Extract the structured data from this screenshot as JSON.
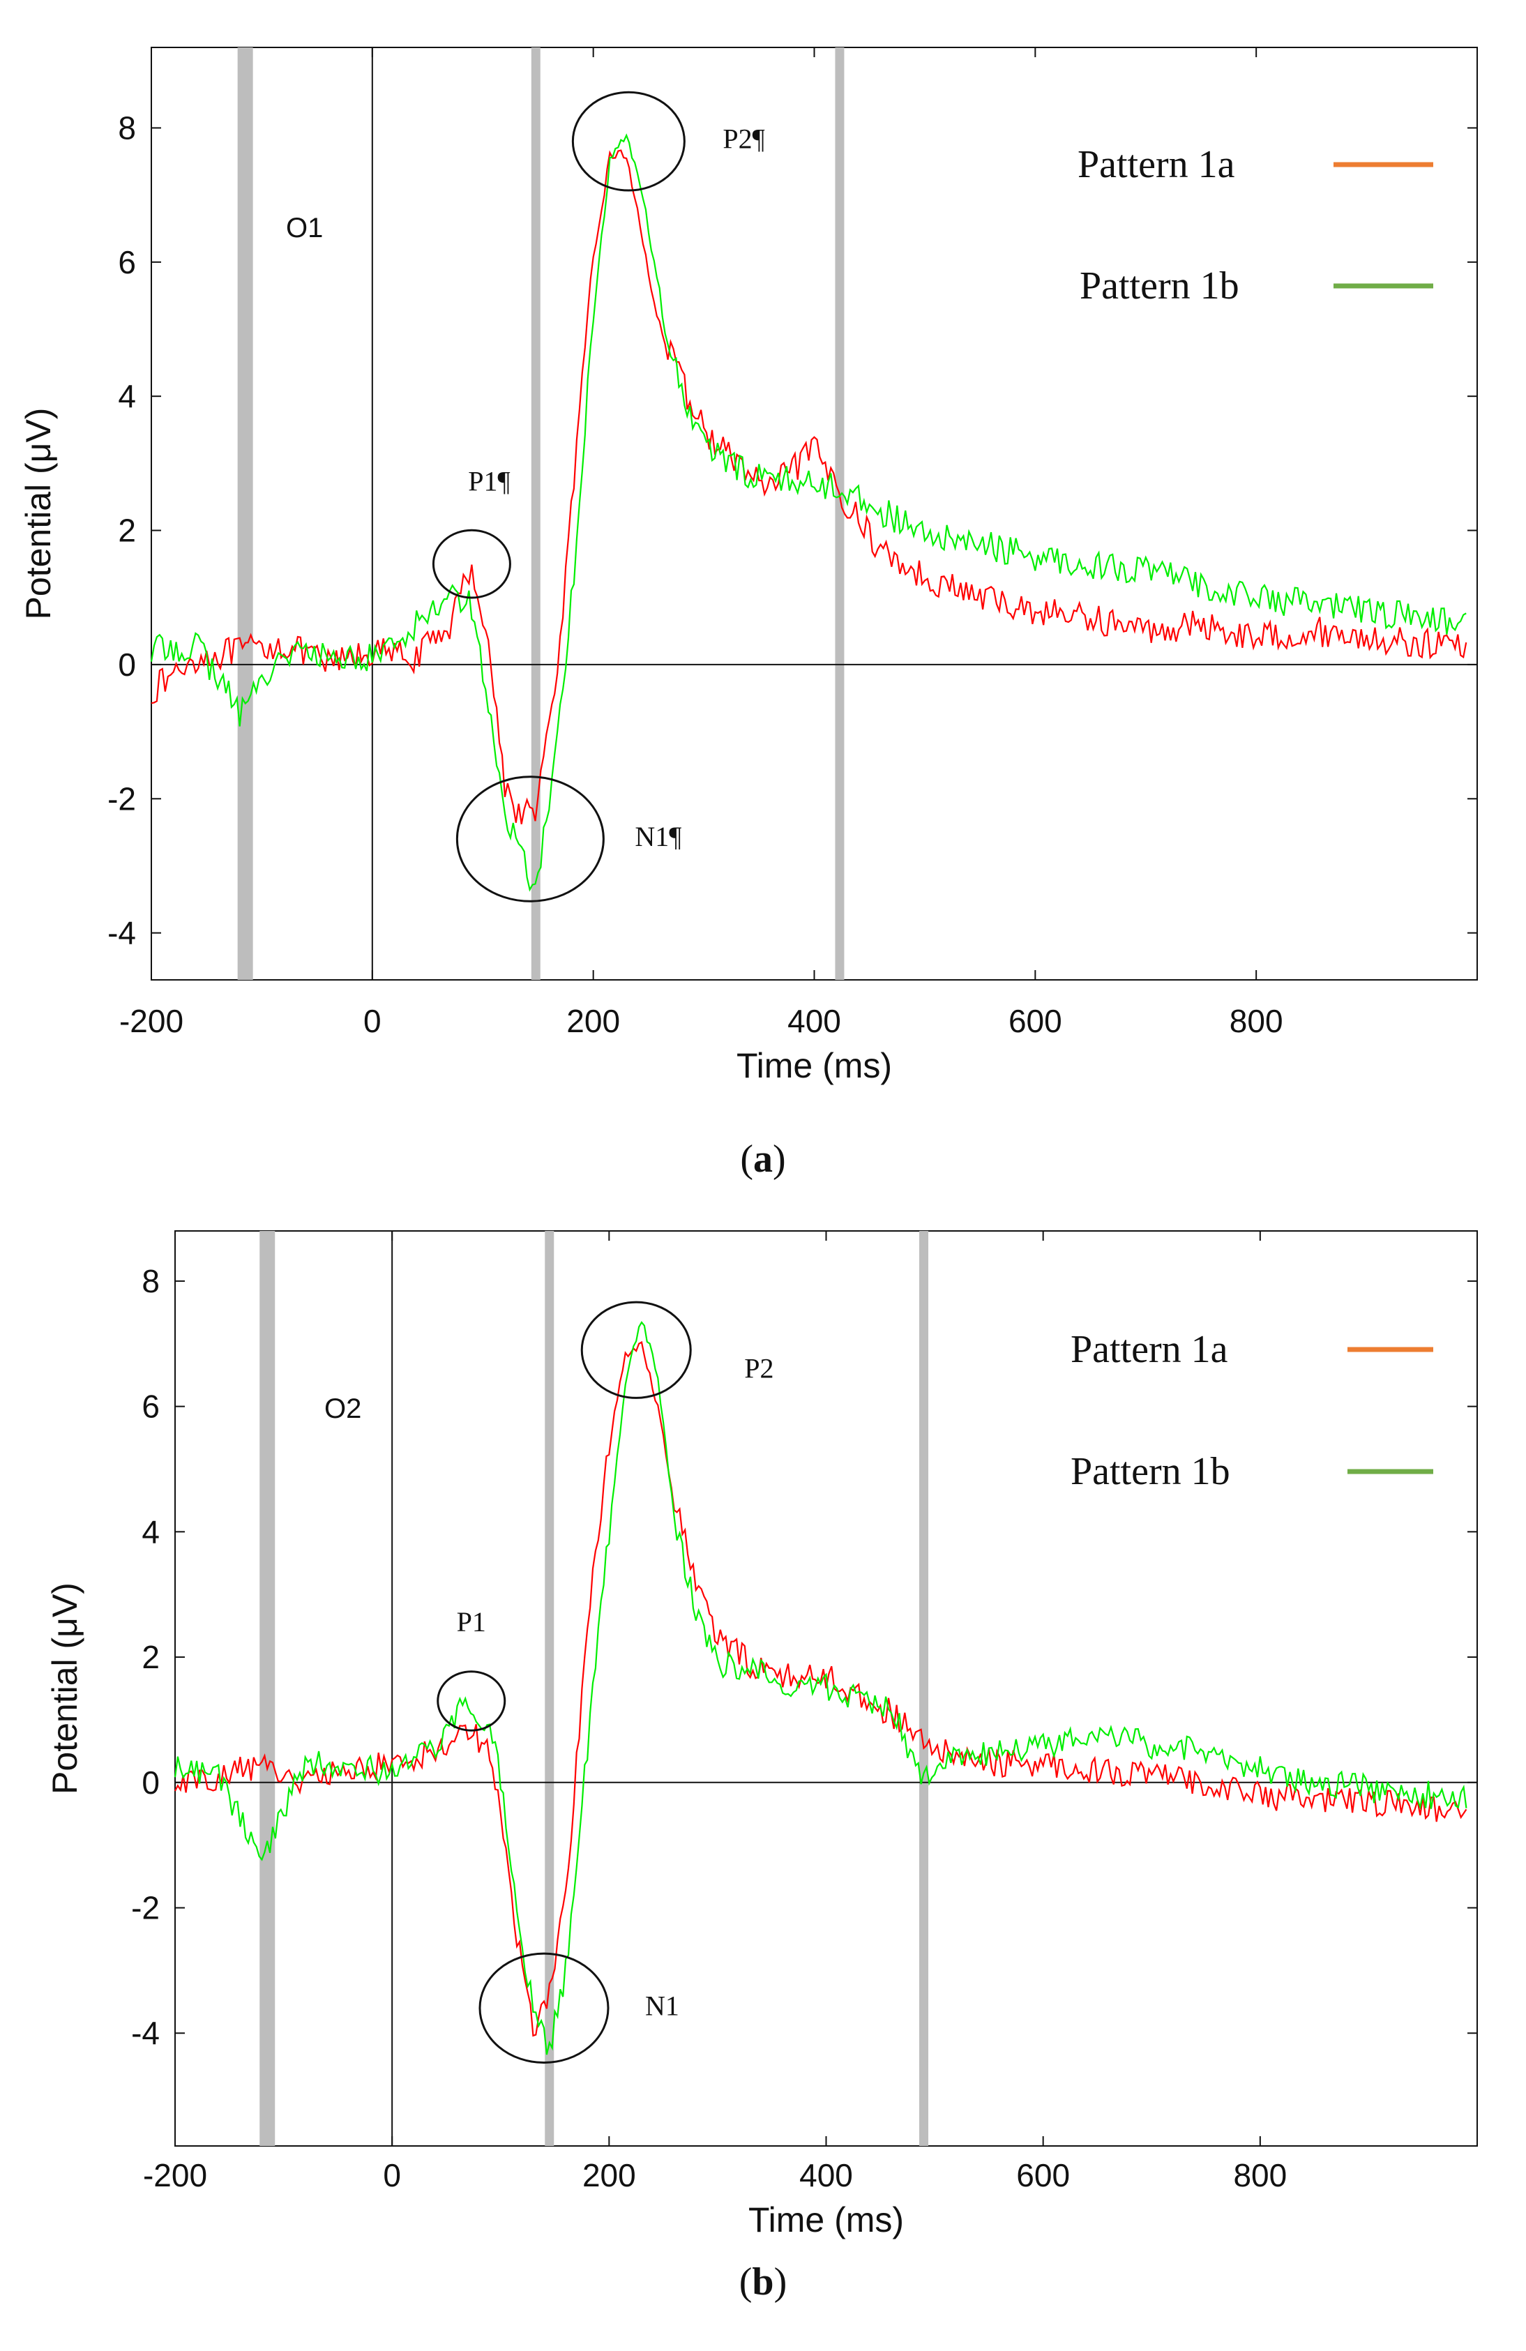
{
  "chart_data": [
    {
      "type": "line",
      "panel_caption": "a",
      "channel_label": "O1",
      "xlabel": "Time (ms)",
      "ylabel": "Potential (μV)",
      "xlim": [
        -200,
        1000
      ],
      "ylim": [
        -4.7,
        9.2
      ],
      "xticks": [
        "-200",
        "0",
        "200",
        "400",
        "600",
        "800"
      ],
      "xtick_values": [
        -200,
        0,
        200,
        400,
        600,
        800
      ],
      "yticks": [
        "8",
        "6",
        "4",
        "2",
        "0",
        "-2",
        "-4"
      ],
      "ytick_values": [
        8,
        6,
        4,
        2,
        0,
        -2,
        -4
      ],
      "gray_markers_ms": [
        -115,
        148,
        423
      ],
      "legend": [
        {
          "label": "Pattern 1a",
          "color": "#ED7D31"
        },
        {
          "label": "Pattern 1b",
          "color": "#70AD47"
        }
      ],
      "series": [
        {
          "name": "Pattern 1a",
          "color": "#ff0000",
          "x": [
            -200,
            -160,
            -120,
            -80,
            -40,
            0,
            40,
            70,
            90,
            105,
            120,
            135,
            148,
            165,
            185,
            200,
            215,
            230,
            245,
            260,
            280,
            300,
            330,
            360,
            400,
            430,
            460,
            500,
            550,
            600,
            650,
            700,
            750,
            800,
            850,
            900,
            950,
            990
          ],
          "y": [
            -0.4,
            0.1,
            0.2,
            0.3,
            0.0,
            0.2,
            0.1,
            0.6,
            1.5,
            0.3,
            -1.8,
            -2.3,
            -2.1,
            -0.5,
            3.2,
            6.0,
            7.6,
            7.6,
            6.3,
            5.0,
            4.2,
            3.5,
            3.0,
            2.6,
            3.2,
            2.4,
            1.7,
            1.3,
            1.0,
            0.8,
            0.7,
            0.5,
            0.6,
            0.4,
            0.5,
            0.4,
            0.3,
            0.3
          ]
        },
        {
          "name": "Pattern 1b",
          "color": "#00ee00",
          "x": [
            -200,
            -160,
            -120,
            -80,
            -40,
            0,
            40,
            70,
            90,
            105,
            120,
            135,
            148,
            165,
            185,
            200,
            215,
            230,
            245,
            260,
            280,
            300,
            330,
            360,
            400,
            430,
            460,
            500,
            550,
            600,
            650,
            700,
            750,
            800,
            850,
            900,
            950,
            990
          ],
          "y": [
            0.2,
            0.3,
            -0.7,
            0.2,
            0.1,
            0.1,
            0.6,
            1.1,
            0.9,
            -0.6,
            -2.3,
            -2.8,
            -3.4,
            -1.5,
            1.8,
            5.2,
            7.5,
            7.9,
            7.0,
            5.5,
            4.0,
            3.3,
            2.9,
            2.8,
            2.7,
            2.6,
            2.3,
            1.9,
            1.8,
            1.6,
            1.5,
            1.4,
            1.2,
            1.0,
            0.9,
            0.8,
            0.7,
            0.6
          ]
        }
      ],
      "annotations": [
        {
          "label": "P1¶",
          "x": 90,
          "y": 1.5
        },
        {
          "label": "N1¶",
          "x": 143,
          "y": -2.6
        },
        {
          "label": "P2¶",
          "x": 232,
          "y": 7.8
        }
      ]
    },
    {
      "type": "line",
      "panel_caption": "b",
      "channel_label": "O2",
      "xlabel": "Time (ms)",
      "ylabel": "Potential (μV)",
      "xlim": [
        -200,
        1000
      ],
      "ylim": [
        -5.8,
        8.8
      ],
      "xticks": [
        "-200",
        "0",
        "200",
        "400",
        "600",
        "800"
      ],
      "xtick_values": [
        -200,
        0,
        200,
        400,
        600,
        800
      ],
      "yticks": [
        "8",
        "6",
        "4",
        "2",
        "0",
        "-2",
        "-4"
      ],
      "yticks_values_note": "",
      "ytick_values": [
        8,
        6,
        4,
        2,
        0,
        -2,
        -4
      ],
      "gray_markers_ms": [
        -115,
        145,
        490
      ],
      "legend": [
        {
          "label": "Pattern 1a",
          "color": "#ED7D31"
        },
        {
          "label": "Pattern 1b",
          "color": "#70AD47"
        }
      ],
      "series": [
        {
          "name": "Pattern 1a",
          "color": "#ff0000",
          "x": [
            -200,
            -160,
            -120,
            -80,
            -40,
            0,
            40,
            70,
            90,
            100,
            115,
            130,
            145,
            160,
            180,
            200,
            215,
            230,
            245,
            260,
            280,
            300,
            330,
            360,
            400,
            430,
            460,
            490,
            520,
            560,
            600,
            650,
            700,
            750,
            800,
            850,
            900,
            950,
            990
          ],
          "y": [
            0.0,
            0.1,
            0.3,
            0.0,
            0.2,
            0.3,
            0.5,
            0.9,
            0.5,
            -0.5,
            -2.5,
            -3.9,
            -3.4,
            -1.8,
            2.5,
            5.4,
            6.8,
            7.0,
            6.0,
            4.5,
            3.2,
            2.3,
            1.9,
            1.7,
            1.7,
            1.4,
            1.1,
            0.6,
            0.4,
            0.3,
            0.3,
            0.2,
            0.1,
            0.0,
            -0.2,
            -0.3,
            -0.3,
            -0.4,
            -0.5
          ]
        },
        {
          "name": "Pattern 1b",
          "color": "#00ee00",
          "x": [
            -200,
            -160,
            -120,
            -80,
            -40,
            0,
            40,
            70,
            90,
            100,
            115,
            130,
            145,
            160,
            180,
            200,
            215,
            230,
            245,
            260,
            280,
            300,
            330,
            360,
            400,
            430,
            460,
            490,
            520,
            560,
            600,
            650,
            700,
            750,
            800,
            850,
            900,
            950,
            990
          ],
          "y": [
            0.2,
            0.1,
            -1.3,
            0.3,
            0.3,
            0.1,
            0.6,
            1.3,
            0.9,
            0.0,
            -2.0,
            -3.6,
            -4.3,
            -3.0,
            0.5,
            4.0,
            6.4,
            7.4,
            6.5,
            4.2,
            2.7,
            1.9,
            1.8,
            1.6,
            1.5,
            1.3,
            1.2,
            0.0,
            0.4,
            0.5,
            0.6,
            0.8,
            0.6,
            0.5,
            0.2,
            0.0,
            -0.1,
            -0.2,
            -0.2
          ]
        }
      ],
      "annotations": [
        {
          "label": "P1",
          "x": 73,
          "y": 1.3
        },
        {
          "label": "N1",
          "x": 140,
          "y": -3.6
        },
        {
          "label": "P2",
          "x": 225,
          "y": 6.9
        }
      ]
    }
  ]
}
